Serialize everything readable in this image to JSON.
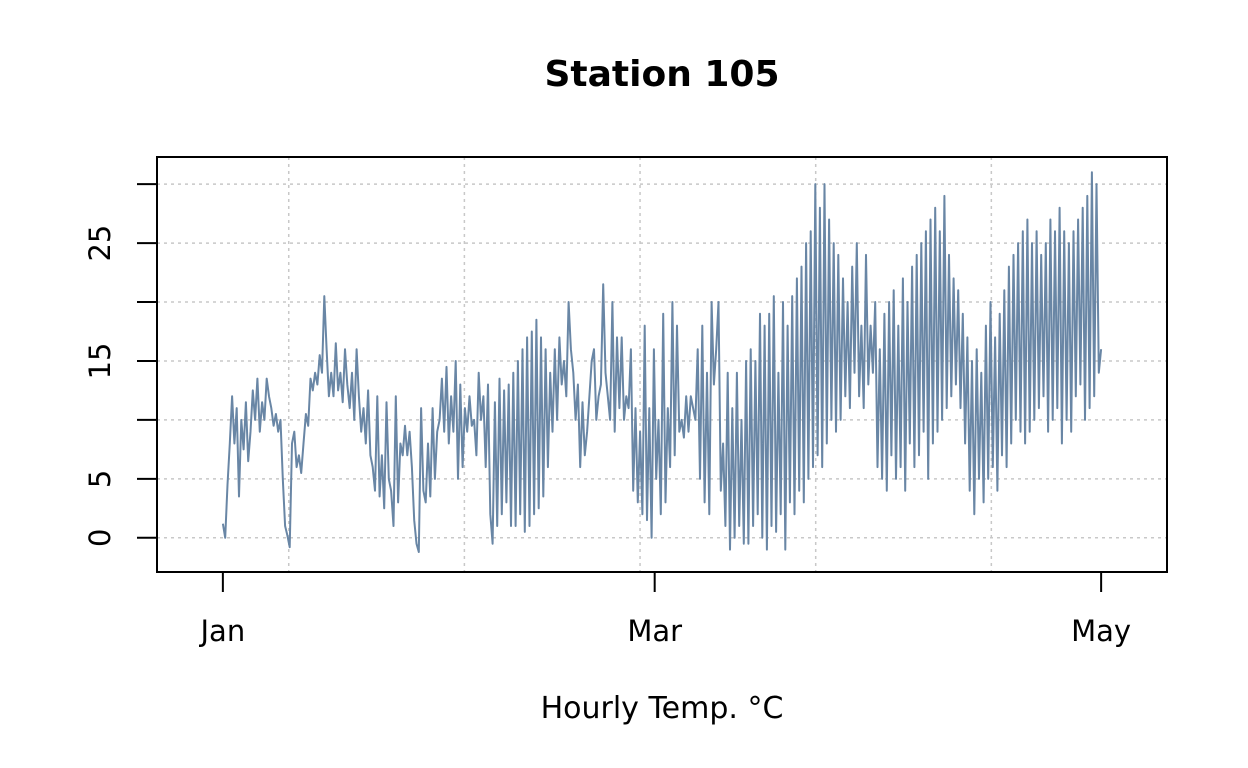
{
  "chart_data": {
    "type": "line",
    "title": "Station 105",
    "xlabel": "Hourly Temp. °C",
    "ylabel": "",
    "x_ticks": [
      {
        "label": "Jan",
        "date": "2018-01-01"
      },
      {
        "label": "Mar",
        "date": "2018-03-01"
      },
      {
        "label": "May",
        "date": "2018-05-01"
      }
    ],
    "y_ticks": [
      0,
      5,
      15,
      25
    ],
    "y_minor_ticks": [
      0,
      5,
      10,
      15,
      20,
      25,
      30
    ],
    "xlim": [
      "2017-12-23",
      "2018-05-10"
    ],
    "ylim": [
      -2.9,
      32.3
    ],
    "grid": true,
    "series": [
      {
        "color": "#6986a5",
        "x_start": "2018-01-01",
        "x_end": "2018-05-01",
        "resolution": "3-hourly (digitized approximation)",
        "values": [
          1.2,
          0,
          4.5,
          8,
          12,
          8,
          11,
          3.5,
          10,
          7.5,
          11.5,
          6.5,
          9,
          12.5,
          10,
          13.5,
          9,
          11.5,
          10,
          13.5,
          12,
          11,
          9.5,
          10.5,
          9,
          10,
          5,
          1,
          0.2,
          -0.8,
          8,
          9,
          6,
          7,
          5.5,
          8,
          10.5,
          9.5,
          13.5,
          12.5,
          14,
          13,
          15.5,
          14,
          20.5,
          16,
          12,
          14,
          12,
          16.5,
          12.5,
          14,
          11.5,
          16,
          13,
          11,
          14,
          10,
          16,
          12,
          9,
          11,
          8,
          12.5,
          7,
          6,
          4,
          12,
          3.5,
          7,
          2.5,
          11.5,
          5,
          4,
          1,
          12,
          3,
          8,
          7,
          9.5,
          7,
          9,
          6,
          1.5,
          -0.5,
          -1.2,
          11,
          4,
          3,
          8,
          3.5,
          11,
          5,
          9,
          10,
          13.5,
          9,
          14.5,
          8,
          12,
          9,
          15,
          5,
          13,
          6,
          11,
          9,
          12,
          9.5,
          10,
          7,
          14,
          10,
          12,
          6,
          13,
          2,
          -0.5,
          11.5,
          1,
          13.5,
          2,
          12.5,
          3,
          13,
          1,
          14,
          1,
          15,
          2,
          16,
          0.5,
          17,
          1,
          17.5,
          2,
          18.5,
          2.5,
          17,
          3.5,
          16,
          6,
          14,
          9,
          16,
          10,
          17,
          13,
          15,
          12,
          20,
          16,
          14,
          10,
          13,
          6,
          11.5,
          7,
          9,
          12,
          15,
          16,
          10,
          12,
          13,
          21.5,
          14,
          12,
          10,
          20,
          9,
          17,
          11,
          17,
          10,
          12,
          11,
          16,
          4,
          11,
          3,
          9,
          2,
          18,
          1.5,
          11,
          0,
          16,
          5,
          10,
          2,
          19,
          3,
          11,
          6,
          20,
          7,
          18,
          9,
          10,
          8.5,
          12,
          9,
          12,
          11,
          10,
          16,
          5,
          18,
          3,
          14,
          2,
          20,
          13,
          16,
          20,
          4,
          8,
          1,
          14,
          -1,
          11,
          0,
          14,
          1,
          10,
          -0.5,
          15,
          -0.5,
          16,
          1,
          15,
          2,
          19,
          0,
          18,
          -1,
          19,
          1,
          20.5,
          0.5,
          14,
          2,
          20,
          -1,
          18,
          3,
          20.5,
          2,
          22,
          4,
          23,
          3,
          25,
          5,
          26,
          6,
          30,
          7,
          28,
          6,
          30,
          8,
          27,
          10,
          25,
          9,
          24,
          10,
          22,
          12,
          20,
          11,
          23,
          14,
          25,
          12,
          18,
          11,
          24,
          13,
          18,
          14,
          20,
          6,
          16,
          5,
          19,
          4,
          20,
          7,
          21,
          5,
          18,
          6,
          22,
          4,
          20,
          8,
          23,
          6,
          24,
          7,
          25,
          9,
          26,
          5,
          27,
          8,
          28,
          9,
          26,
          10,
          29,
          11,
          24,
          12,
          22,
          13,
          21,
          11,
          19,
          8,
          17,
          4,
          15,
          2,
          16,
          5,
          14,
          3,
          18,
          5,
          20,
          6,
          17,
          4,
          19,
          7,
          21,
          6,
          23,
          8,
          24,
          10,
          25,
          9,
          26,
          8,
          27,
          9,
          25,
          10,
          26,
          11,
          24,
          12,
          25,
          9,
          27,
          10,
          26,
          11,
          28,
          8,
          26,
          10,
          25,
          9,
          26,
          12,
          27,
          13,
          28,
          10,
          29,
          11,
          31,
          12,
          30,
          14,
          16
        ]
      }
    ]
  }
}
